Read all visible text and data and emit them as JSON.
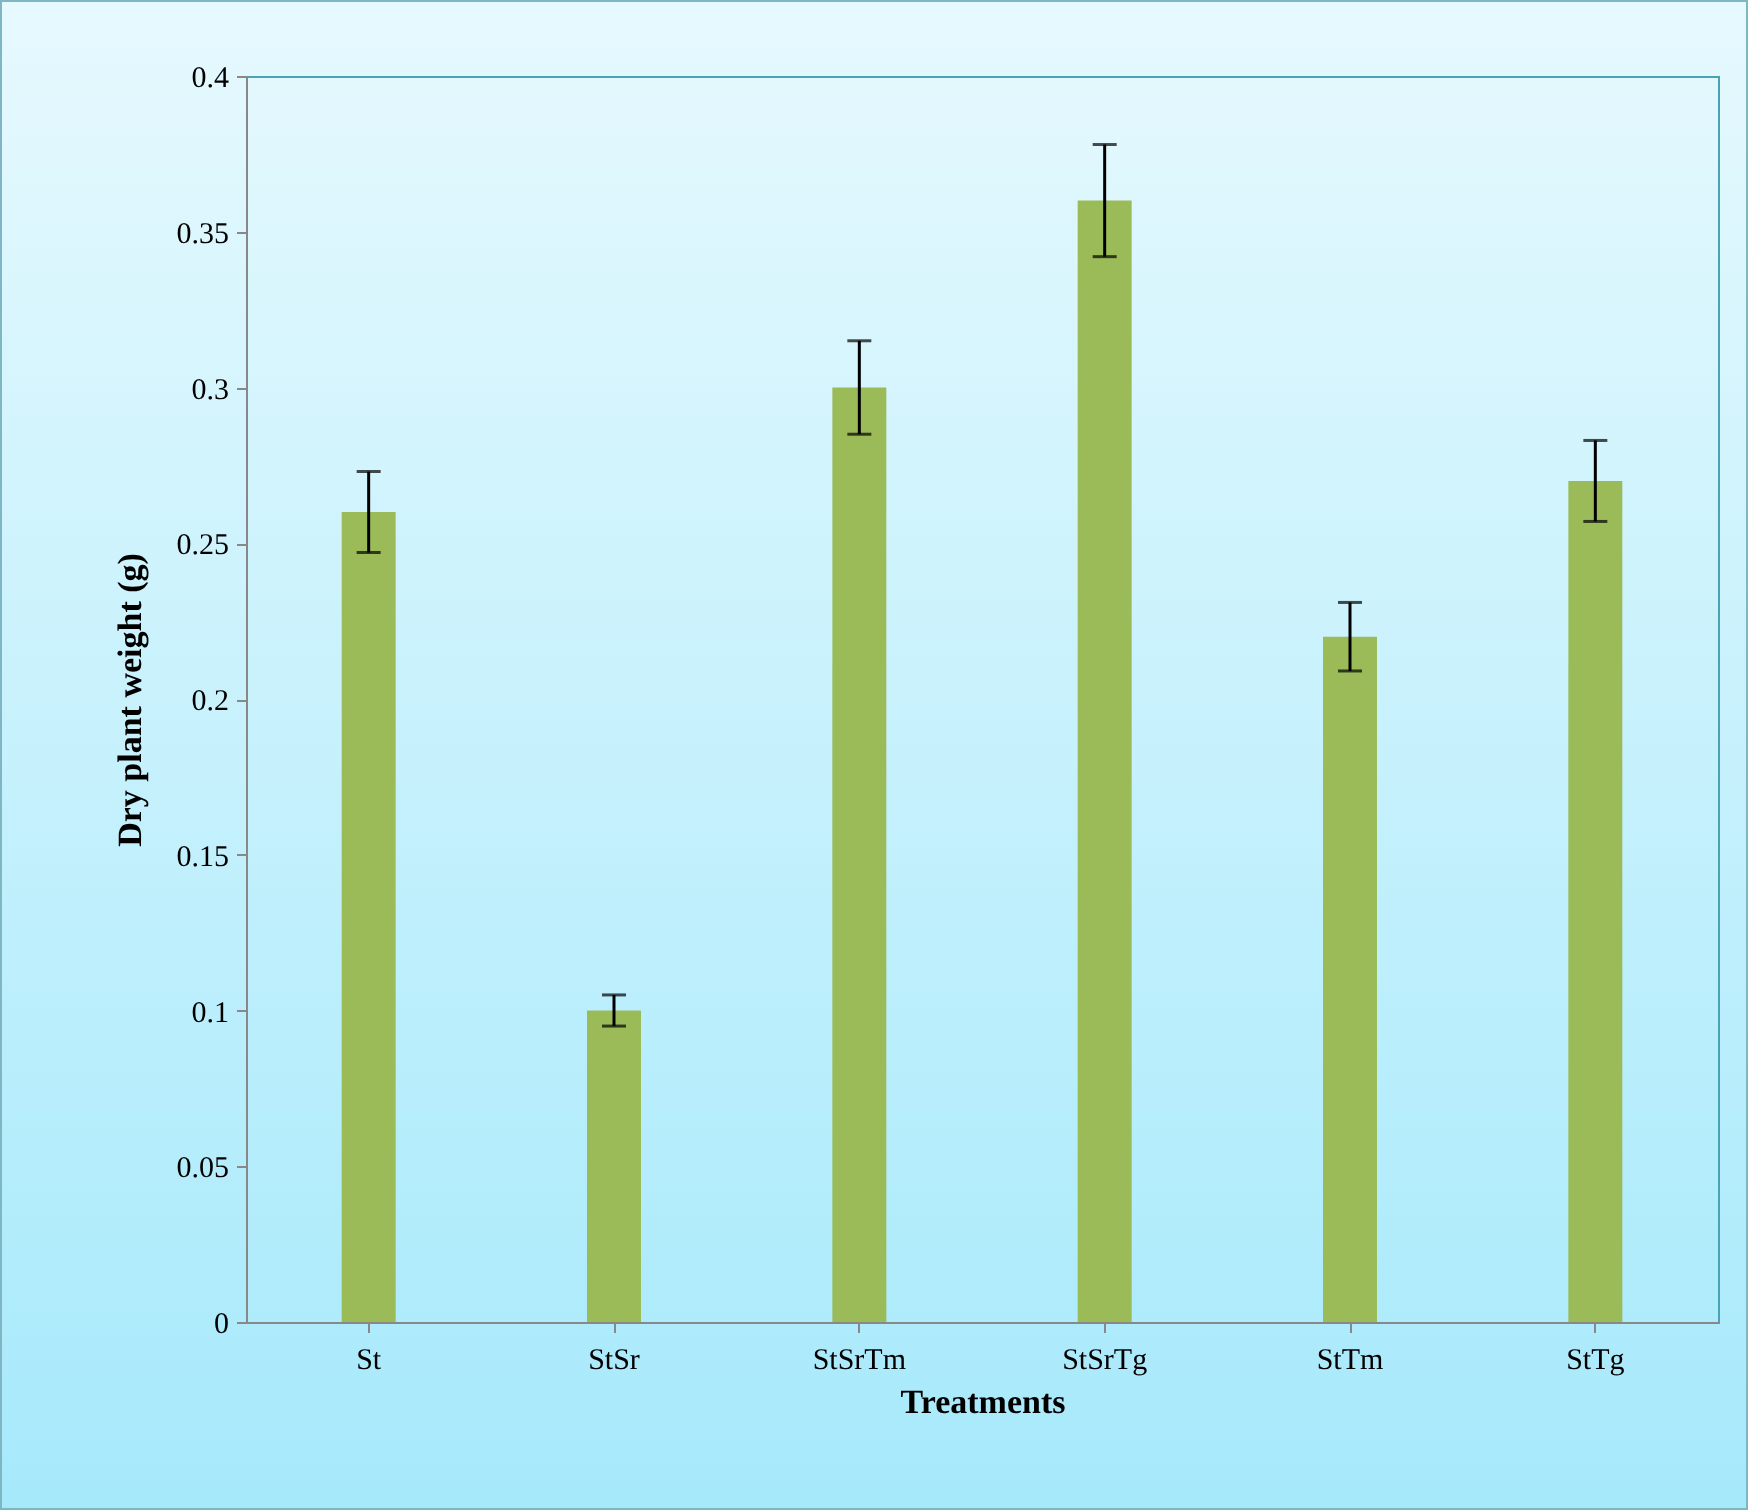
{
  "chart_data": {
    "type": "bar",
    "xlabel": "Treatments",
    "ylabel": "Dry plant weight (g)",
    "categories": [
      "St",
      "StSr",
      "StSrTm",
      "StSrTg",
      "StTm",
      "StTg"
    ],
    "values": [
      0.26,
      0.1,
      0.3,
      0.36,
      0.22,
      0.27
    ],
    "errors": [
      0.013,
      0.005,
      0.015,
      0.018,
      0.011,
      0.013
    ],
    "color": "#9bbb59",
    "ylim": [
      0,
      0.4
    ],
    "yticks": [
      0,
      0.05,
      0.1,
      0.15,
      0.2,
      0.25,
      0.3,
      0.35,
      0.4
    ],
    "grid": false
  }
}
